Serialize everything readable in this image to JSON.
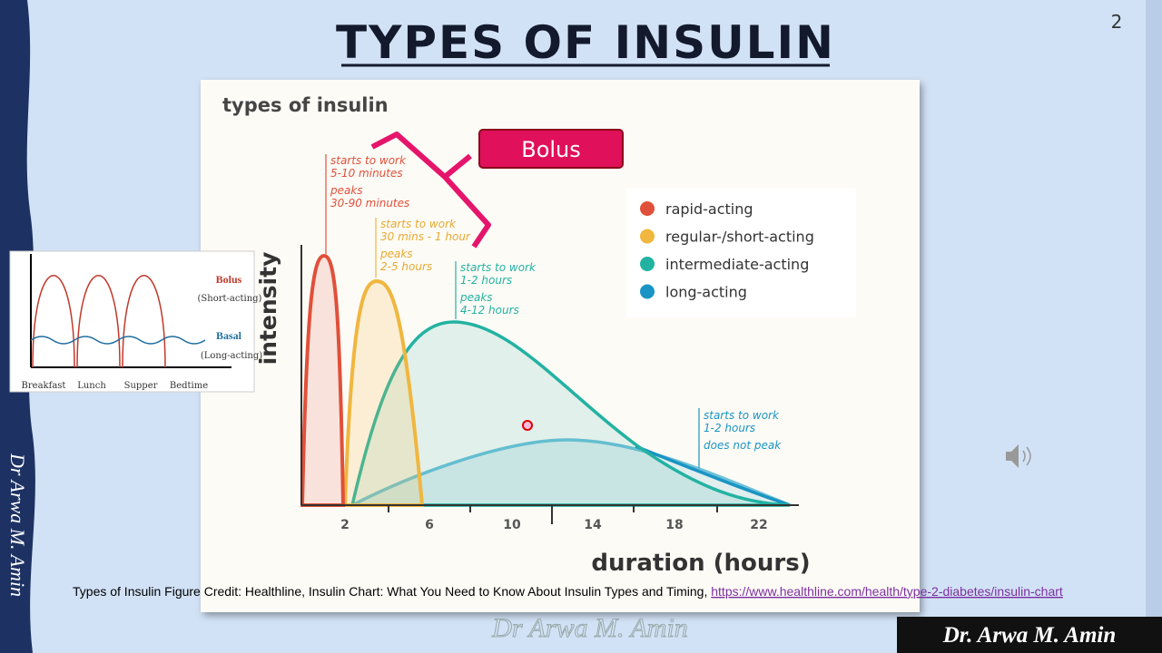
{
  "slide": {
    "title": "TYPES OF INSULIN",
    "page_number": "2",
    "side_author": "Dr Arwa M. Amin",
    "watermark": "Dr Arwa M. Amin",
    "footer_badge": "Dr. Arwa M. Amin"
  },
  "figure": {
    "title": "types of insulin",
    "y_axis_label": "intensity",
    "x_axis_label": "duration (hours)",
    "x_ticks": [
      2,
      6,
      10,
      14,
      18,
      22
    ],
    "annotations": [
      [
        "starts to work",
        "5-10 minutes",
        "peaks",
        "30-90 minutes"
      ],
      [
        "starts to work",
        "30 mins - 1 hour",
        "peaks",
        "2-5 hours"
      ],
      [
        "starts to work",
        "1-2 hours",
        "peaks",
        "4-12 hours"
      ],
      [
        "starts to work",
        "1-2 hours",
        "does not peak"
      ]
    ],
    "legend": [
      {
        "name": "rapid-acting",
        "color": "#e0503a"
      },
      {
        "name": "regular-/short-acting",
        "color": "#f0b63e"
      },
      {
        "name": "intermediate-acting",
        "color": "#22b2a2"
      },
      {
        "name": "long-acting",
        "color": "#1a94c4"
      }
    ],
    "callout": "Bolus"
  },
  "inset": {
    "bolus": "Bolus",
    "bolus_note": "(Short-acting)",
    "basal": "Basal",
    "basal_note": "(Long-acting)",
    "times": [
      "Breakfast",
      "Lunch",
      "Supper",
      "Bedtime"
    ]
  },
  "caption": {
    "text": "Types of Insulin Figure Credit: Healthline, Insulin Chart: What You Need to Know About Insulin Types and Timing, ",
    "link": "https://www.healthline.com/health/type-2-diabetes/insulin-chart"
  }
}
